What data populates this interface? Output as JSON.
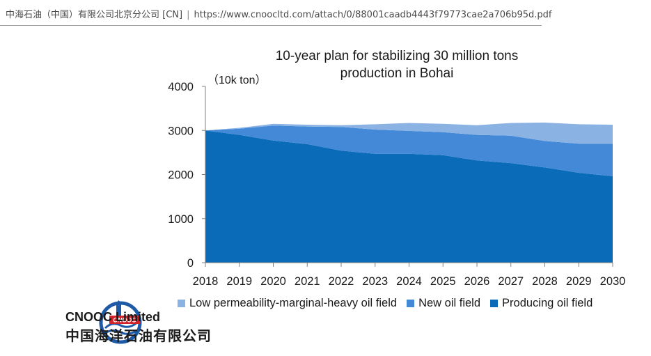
{
  "browser": {
    "tab_title": "中海石油（中国）有限公司北京分公司 [CN]",
    "separator": "|",
    "url": "https://www.cnoocltd.com/attach/0/88001caadb4443f79773cae2a706b95d.pdf"
  },
  "logo": {
    "name_en": "CNOOC Limited",
    "name_cn": "中国海洋石油有限公司",
    "badge_text": "CNOOC",
    "colors": {
      "blue": "#1f5aa6",
      "red": "#d2232a"
    }
  },
  "chart_data": {
    "type": "area",
    "stacked": true,
    "title": "10-year plan for stabilizing 30 million tons production in Bohai",
    "title_lines": [
      "10-year plan for stabilizing 30 million tons",
      "production in Bohai"
    ],
    "ylabel": "（10k ton）",
    "xlabel": "",
    "ylim": [
      0,
      4000
    ],
    "yticks": [
      0,
      1000,
      2000,
      3000,
      4000
    ],
    "x": [
      2018,
      2019,
      2020,
      2021,
      2022,
      2023,
      2024,
      2025,
      2026,
      2027,
      2028,
      2029,
      2030
    ],
    "grid": false,
    "legend_position": "bottom",
    "series": [
      {
        "name": "Producing oil field",
        "color": "#0a6cb8",
        "values": [
          3000,
          2900,
          2770,
          2690,
          2540,
          2470,
          2470,
          2440,
          2320,
          2260,
          2160,
          2040,
          1960
        ]
      },
      {
        "name": "New oil field",
        "color": "#4389d8",
        "values": [
          0,
          140,
          340,
          400,
          540,
          550,
          520,
          520,
          580,
          620,
          600,
          660,
          740
        ]
      },
      {
        "name": "Low permeability-marginal-heavy oil field",
        "color": "#8ab3e4",
        "values": [
          0,
          20,
          40,
          40,
          40,
          120,
          180,
          190,
          220,
          290,
          420,
          440,
          430
        ]
      }
    ],
    "legend_order": [
      "Low permeability-marginal-heavy oil field",
      "New oil field",
      "Producing oil field"
    ]
  }
}
